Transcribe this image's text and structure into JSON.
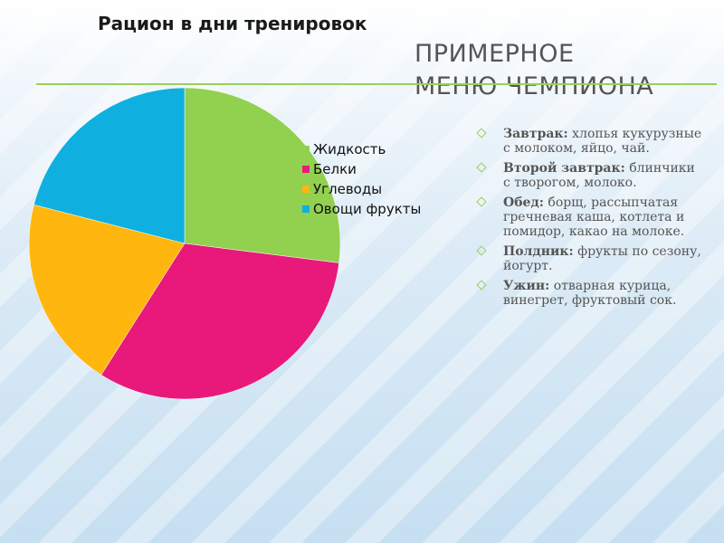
{
  "slide": {
    "title_line1": "ПРИМЕРНОЕ",
    "title_line2": "МЕНЮ ЧЕМПИОНА"
  },
  "chart_data": {
    "type": "pie",
    "title": "Рацион в дни тренировок",
    "categories": [
      "Жидкость",
      "Белки",
      "Углеводы",
      "Овощи фрукты"
    ],
    "values": [
      27,
      32,
      20,
      21
    ],
    "colors": [
      "#92d050",
      "#e8197a",
      "#ffb70f",
      "#0fb0df"
    ],
    "legend_position": "right"
  },
  "menu": [
    {
      "label": "Завтрак:",
      "text": "хлопья кукурузные с молоком, яйцо, чай."
    },
    {
      "label": "Второй завтрак:",
      "text": "блинчики с творогом, молоко."
    },
    {
      "label": "Обед:",
      "text": "борщ, рассыпчатая гречневая каша, котлета и помидор, какао на молоке."
    },
    {
      "label": "Полдник:",
      "text": "фрукты по сезону, йогурт."
    },
    {
      "label": "Ужин:",
      "text": "отварная курица, винегрет, фруктовый сок."
    }
  ]
}
